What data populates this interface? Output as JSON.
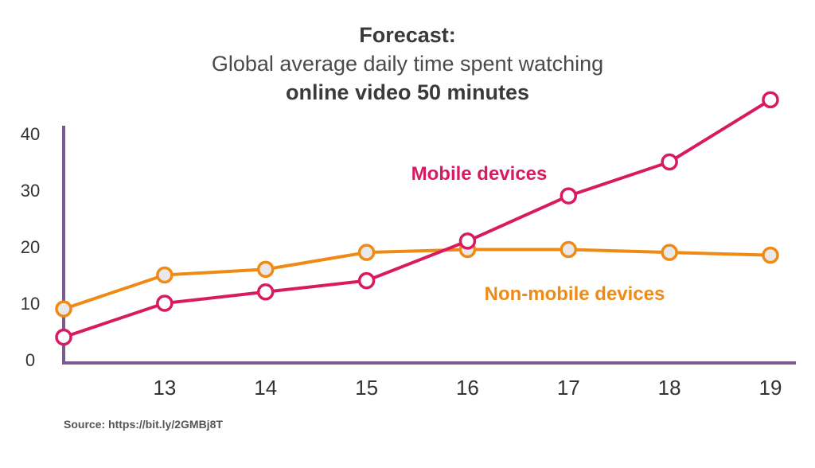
{
  "chart_data": {
    "type": "line",
    "title": "Forecast:",
    "subtitle_line1": "Global average daily time spent watching",
    "subtitle_line2": "online video 50 minutes",
    "x": [
      12,
      13,
      14,
      15,
      16,
      17,
      18,
      19
    ],
    "x_tick_labels": [
      "13",
      "14",
      "15",
      "16",
      "17",
      "18",
      "19"
    ],
    "y_tick_labels": [
      "0",
      "10",
      "20",
      "30",
      "40"
    ],
    "ylim": [
      0,
      42
    ],
    "series": [
      {
        "name": "Mobile devices",
        "label": "Mobile devices",
        "color": "#d81b60",
        "values": [
          4,
          10,
          12,
          14,
          21,
          29,
          35,
          46
        ]
      },
      {
        "name": "Non-mobile devices",
        "label": "Non-mobile devices",
        "color": "#f08a16",
        "values": [
          9,
          15,
          16,
          19,
          19.5,
          19.5,
          19,
          18.5
        ]
      }
    ],
    "axis_color": "#7b5a8f",
    "source": "Source: https://bit.ly/2GMBj8T"
  }
}
